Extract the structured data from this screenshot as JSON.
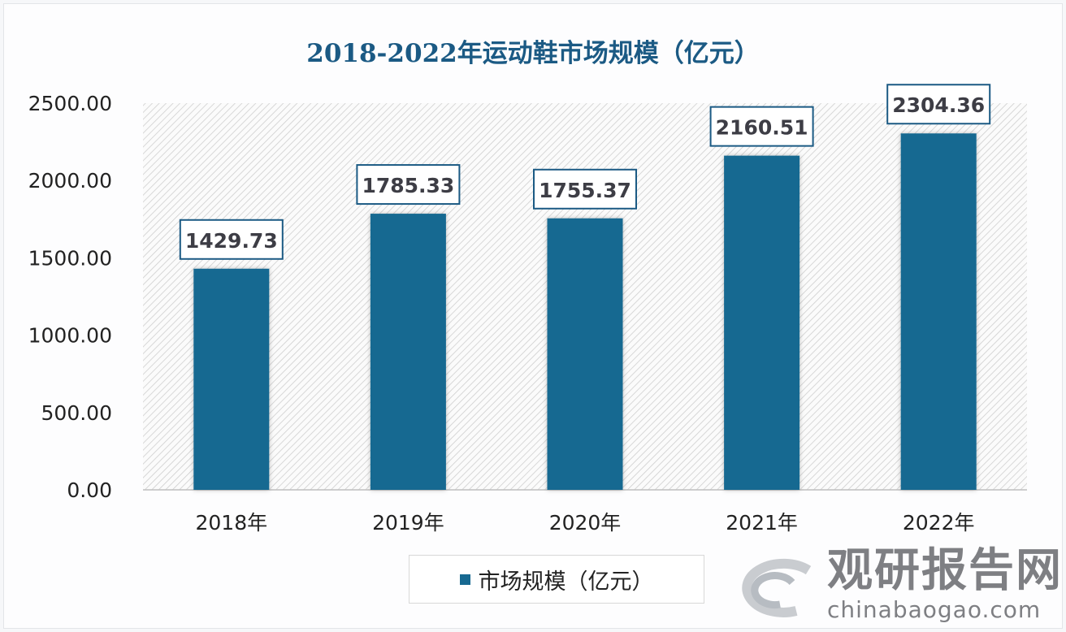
{
  "chart_data": {
    "type": "bar",
    "title": "2018-2022年运动鞋市场规模（亿元）",
    "categories": [
      "2018年",
      "2019年",
      "2020年",
      "2021年",
      "2022年"
    ],
    "series": [
      {
        "name": "市场规模（亿元）",
        "values": [
          1429.73,
          1785.33,
          1755.37,
          2160.51,
          2304.36
        ]
      }
    ],
    "data_labels": [
      "1429.73",
      "1785.33",
      "1755.37",
      "2160.51",
      "2304.36"
    ],
    "yticks": [
      "0.00",
      "500.00",
      "1000.00",
      "1500.00",
      "2000.00",
      "2500.00"
    ],
    "ylim": [
      0,
      2500
    ],
    "grid": false,
    "legend": "bottom",
    "bar_color": "#176991",
    "label_border_color": "#1b5a84"
  },
  "watermark": {
    "cn": "观研报告网",
    "en": "chinabaogao.com"
  }
}
